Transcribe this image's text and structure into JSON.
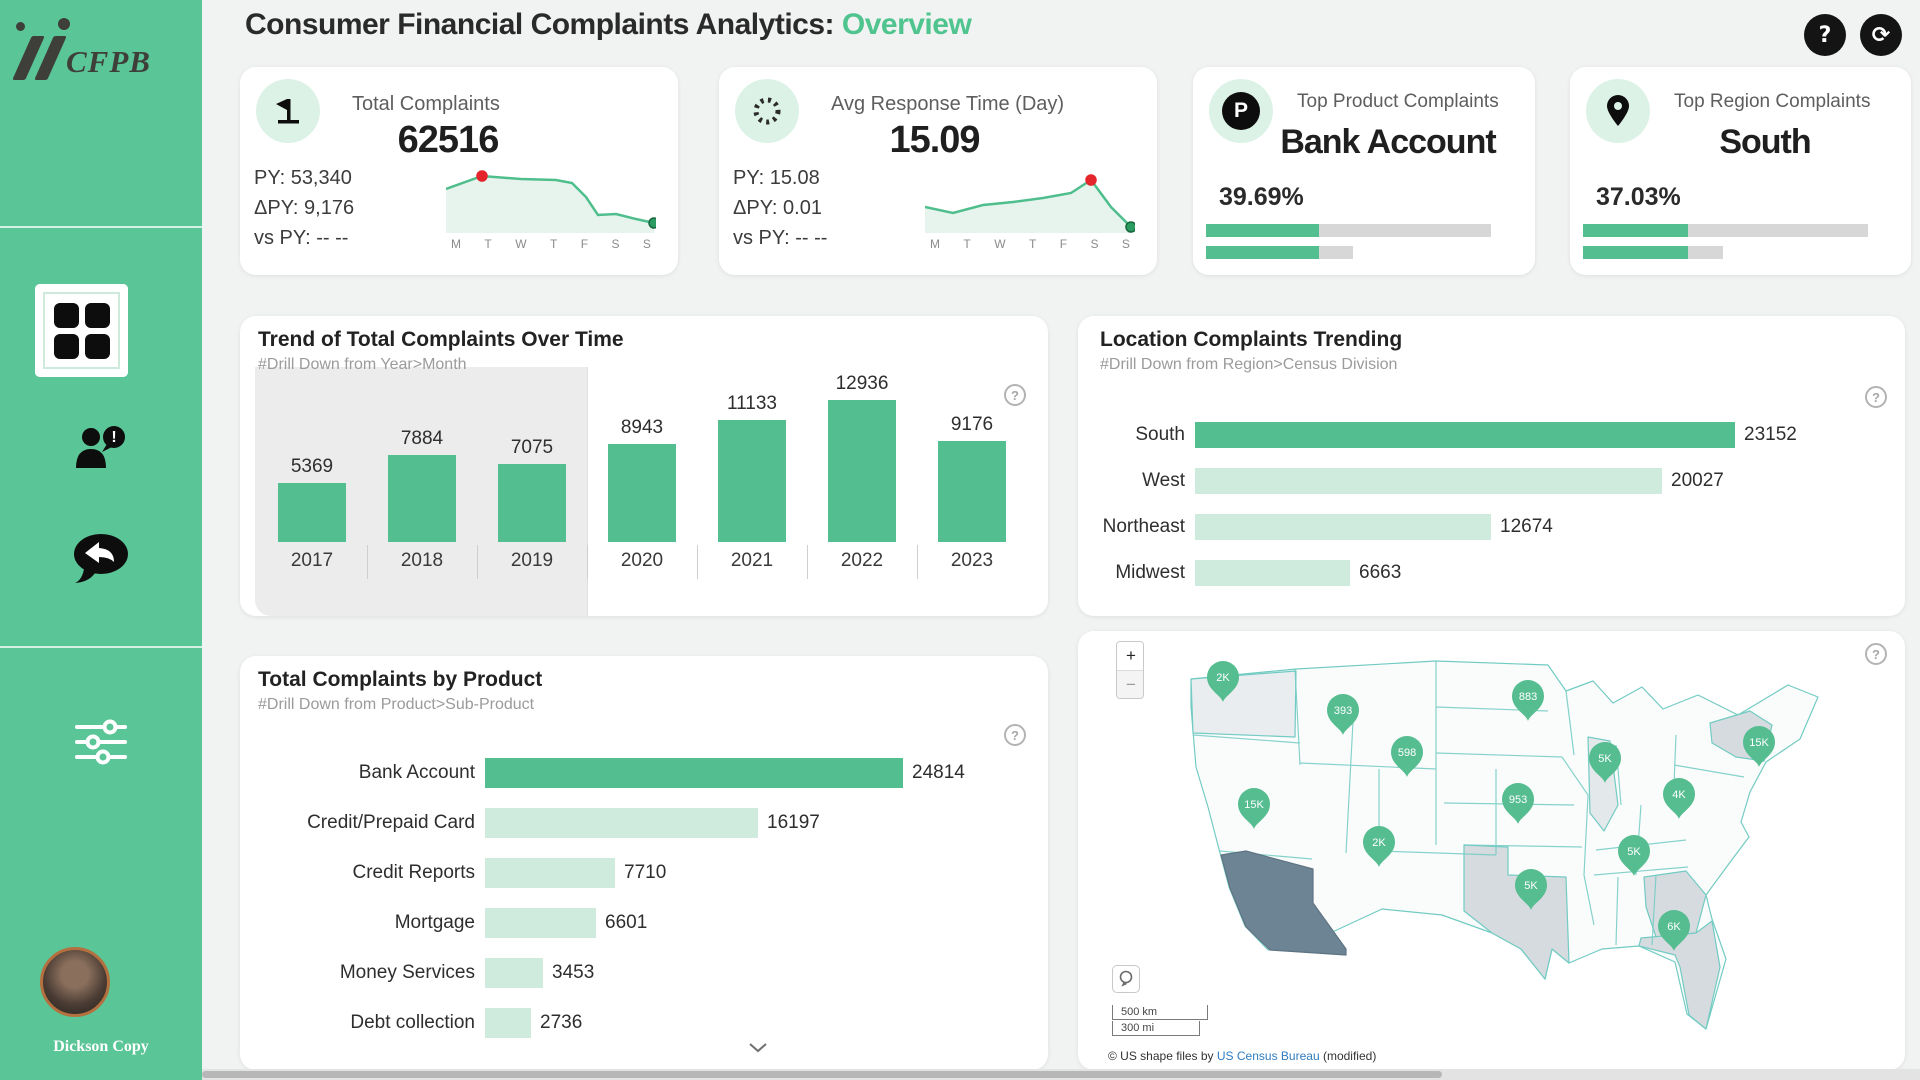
{
  "header": {
    "title": "Consumer Financial Complaints Analytics:",
    "highlight": "Overview",
    "help_label": "?",
    "sync_label": "⟳"
  },
  "sidebar": {
    "logo_text": "CFPB",
    "user_name": "Dickson Copy"
  },
  "kpis": [
    {
      "label": "Total Complaints",
      "value": "62516",
      "py": "PY: 53,340",
      "delta": "ΔPY: 9,176",
      "vs": "vs PY: -- --",
      "spark": {
        "labels": [
          "M",
          "T",
          "W",
          "T",
          "F",
          "S",
          "S"
        ],
        "points": [
          [
            0,
            22
          ],
          [
            36,
            9
          ],
          [
            75,
            12
          ],
          [
            110,
            13
          ],
          [
            126,
            16
          ],
          [
            140,
            30
          ],
          [
            152,
            48
          ],
          [
            170,
            47
          ],
          [
            190,
            52
          ],
          [
            208,
            56
          ]
        ],
        "peak": [
          36,
          9
        ],
        "end": [
          208,
          56
        ]
      }
    },
    {
      "label": "Avg Response Time (Day)",
      "value": "15.09",
      "py": "PY: 15.08",
      "delta": "ΔPY: 0.01",
      "vs": "vs PY: -- --",
      "spark": {
        "labels": [
          "M",
          "T",
          "W",
          "T",
          "F",
          "S",
          "S"
        ],
        "points": [
          [
            0,
            40
          ],
          [
            28,
            46
          ],
          [
            58,
            38
          ],
          [
            88,
            35
          ],
          [
            118,
            31
          ],
          [
            146,
            26
          ],
          [
            166,
            13
          ],
          [
            186,
            40
          ],
          [
            206,
            60
          ]
        ],
        "peak": [
          166,
          13
        ],
        "end": [
          206,
          60
        ]
      }
    },
    {
      "label": "Top Product Complaints",
      "value": "Bank Account",
      "pct": "39.69%",
      "icon_letter": "P",
      "bar_green": 113,
      "bar_track1": 285,
      "bar_track2": 147
    },
    {
      "label": "Top Region Complaints",
      "value": "South",
      "pct": "37.03%",
      "bar_green": 105,
      "bar_track1": 285,
      "bar_track2": 140
    }
  ],
  "chart_data": [
    {
      "type": "bar",
      "title": "Trend of Total Complaints Over Time",
      "subtitle": "#Drill Down from Year>Month",
      "categories": [
        "2017",
        "2018",
        "2019",
        "2020",
        "2021",
        "2022",
        "2023"
      ],
      "values": [
        5369,
        7884,
        7075,
        8943,
        11133,
        12936,
        9176
      ],
      "highlighted_categories": [
        "2017",
        "2018",
        "2019"
      ],
      "ylim": [
        0,
        13500
      ],
      "grid": false,
      "bar_color": "#53BE8F"
    },
    {
      "type": "bar",
      "orientation": "horizontal",
      "title": "Location Complaints Trending",
      "subtitle": "#Drill Down from Region>Census Division",
      "categories": [
        "South",
        "West",
        "Northeast",
        "Midwest"
      ],
      "values": [
        23152,
        20027,
        12674,
        6663
      ],
      "highlight": "South",
      "xlim": [
        0,
        24000
      ]
    },
    {
      "type": "bar",
      "orientation": "horizontal",
      "title": "Total Complaints by Product",
      "subtitle": "#Drill Down from Product>Sub-Product",
      "categories": [
        "Bank Account",
        "Credit/Prepaid Card",
        "Credit Reports",
        "Mortgage",
        "Money Services",
        "Debt collection"
      ],
      "values": [
        24814,
        16197,
        7710,
        6601,
        3453,
        2736
      ],
      "highlight": "Bank Account",
      "xlim": [
        0,
        26000
      ]
    }
  ],
  "map": {
    "zoom_in": "+",
    "zoom_out": "−",
    "scale_km": "500 km",
    "scale_mi": "300 mi",
    "attribution_prefix": "© US shape files by ",
    "attribution_link": "US Census Bureau",
    "attribution_suffix": " (modified)",
    "markers": [
      {
        "label": "2K",
        "x": 127,
        "y": 35
      },
      {
        "label": "393",
        "x": 247,
        "y": 68
      },
      {
        "label": "598",
        "x": 311,
        "y": 110
      },
      {
        "label": "883",
        "x": 432,
        "y": 54
      },
      {
        "label": "5K",
        "x": 509,
        "y": 116
      },
      {
        "label": "953",
        "x": 422,
        "y": 157
      },
      {
        "label": "15K",
        "x": 663,
        "y": 100
      },
      {
        "label": "4K",
        "x": 583,
        "y": 152
      },
      {
        "label": "15K",
        "x": 158,
        "y": 162
      },
      {
        "label": "2K",
        "x": 283,
        "y": 200
      },
      {
        "label": "5K",
        "x": 538,
        "y": 209
      },
      {
        "label": "5K",
        "x": 435,
        "y": 243
      },
      {
        "label": "6K",
        "x": 578,
        "y": 284
      }
    ]
  }
}
